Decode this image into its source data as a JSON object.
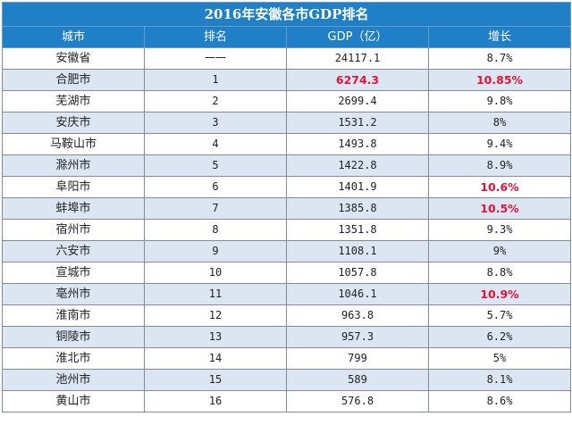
{
  "table": {
    "title": "2016年安徽各市GDP排名",
    "headers": [
      "城市",
      "排名",
      "GDP（亿）",
      "增长"
    ],
    "highlight_color": "#e3143a",
    "header_color": "#1f7fc7",
    "stripe_color": "#dce6f2",
    "rows": [
      {
        "city": "安徽省",
        "rank": "一一",
        "gdp": "24117.1",
        "growth": "8.7%",
        "gdp_hl": false,
        "growth_hl": false
      },
      {
        "city": "合肥市",
        "rank": "1",
        "gdp": "6274.3",
        "growth": "10.85%",
        "gdp_hl": true,
        "growth_hl": true
      },
      {
        "city": "芜湖市",
        "rank": "2",
        "gdp": "2699.4",
        "growth": "9.8%",
        "gdp_hl": false,
        "growth_hl": false
      },
      {
        "city": "安庆市",
        "rank": "3",
        "gdp": "1531.2",
        "growth": "8%",
        "gdp_hl": false,
        "growth_hl": false
      },
      {
        "city": "马鞍山市",
        "rank": "4",
        "gdp": "1493.8",
        "growth": "9.4%",
        "gdp_hl": false,
        "growth_hl": false
      },
      {
        "city": "滁州市",
        "rank": "5",
        "gdp": "1422.8",
        "growth": "8.9%",
        "gdp_hl": false,
        "growth_hl": false
      },
      {
        "city": "阜阳市",
        "rank": "6",
        "gdp": "1401.9",
        "growth": "10.6%",
        "gdp_hl": false,
        "growth_hl": true
      },
      {
        "city": "蚌埠市",
        "rank": "7",
        "gdp": "1385.8",
        "growth": "10.5%",
        "gdp_hl": false,
        "growth_hl": true
      },
      {
        "city": "宿州市",
        "rank": "8",
        "gdp": "1351.8",
        "growth": "9.3%",
        "gdp_hl": false,
        "growth_hl": false
      },
      {
        "city": "六安市",
        "rank": "9",
        "gdp": "1108.1",
        "growth": "9%",
        "gdp_hl": false,
        "growth_hl": false
      },
      {
        "city": "宣城市",
        "rank": "10",
        "gdp": "1057.8",
        "growth": "8.8%",
        "gdp_hl": false,
        "growth_hl": false
      },
      {
        "city": "亳州市",
        "rank": "11",
        "gdp": "1046.1",
        "growth": "10.9%",
        "gdp_hl": false,
        "growth_hl": true
      },
      {
        "city": "淮南市",
        "rank": "12",
        "gdp": "963.8",
        "growth": "5.7%",
        "gdp_hl": false,
        "growth_hl": false
      },
      {
        "city": "铜陵市",
        "rank": "13",
        "gdp": "957.3",
        "growth": "6.2%",
        "gdp_hl": false,
        "growth_hl": false
      },
      {
        "city": "淮北市",
        "rank": "14",
        "gdp": "799",
        "growth": "5%",
        "gdp_hl": false,
        "growth_hl": false
      },
      {
        "city": "池州市",
        "rank": "15",
        "gdp": "589",
        "growth": "8.1%",
        "gdp_hl": false,
        "growth_hl": false
      },
      {
        "city": "黄山市",
        "rank": "16",
        "gdp": "576.8",
        "growth": "8.6%",
        "gdp_hl": false,
        "growth_hl": false
      }
    ]
  }
}
